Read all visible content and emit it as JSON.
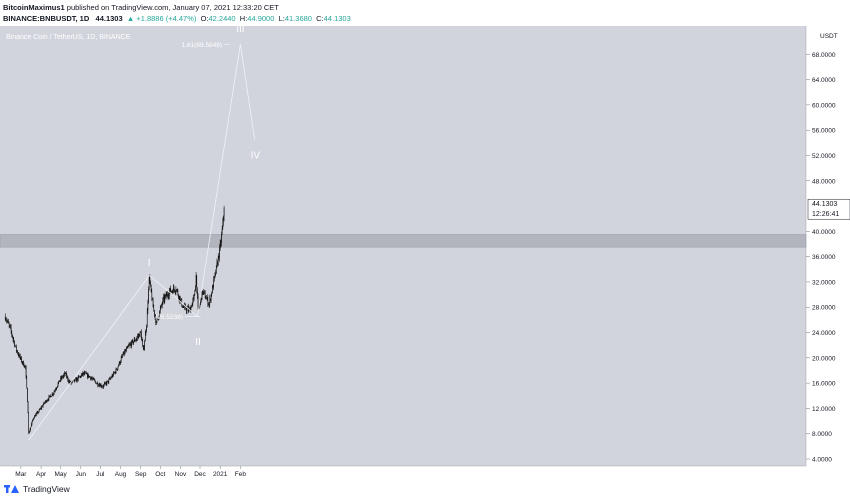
{
  "header": {
    "publisher": "BitcoinMaximus1",
    "published_text": "published on TradingView.com, January 07, 2021 12:33:20 CET",
    "symbol": "BINANCE:BNBUSDT, 1D",
    "last": "44.1303",
    "change": "▲ +1.8886 (+4.47%)",
    "ohlc": {
      "o_label": "O:",
      "o": "42.2440",
      "h_label": "H:",
      "h": "44.9000",
      "l_label": "L:",
      "l": "41.3680",
      "c_label": "C:",
      "c": "44.1303"
    }
  },
  "footer": {
    "brand": "TradingView"
  },
  "colors": {
    "plot_bg": "#d1d4dc",
    "axis_bg": "#ffffff",
    "candle": "#111111",
    "wave_line": "#f1f2f6",
    "support_band": "#b2b5be",
    "last_price_bg": "#ffffff"
  },
  "chart_data": {
    "type": "line",
    "title": "Binance Coin / TetherUS, 1D, BINANCE",
    "currency_label": "USDT",
    "x_ticks": [
      "Mar",
      "Apr",
      "May",
      "Jun",
      "Jul",
      "Aug",
      "Sep",
      "Oct",
      "Nov",
      "Dec",
      "2021",
      "Feb"
    ],
    "y_ticks": [
      "4.0000",
      "8.0000",
      "12.0000",
      "16.0000",
      "20.0000",
      "24.0000",
      "28.0000",
      "32.0000",
      "36.0000",
      "40.0000",
      "48.0000",
      "52.0000",
      "56.0000",
      "60.0000",
      "64.0000",
      "68.0000"
    ],
    "ylim": [
      4,
      72
    ],
    "last_price": "44.1303",
    "countdown": "12:26:41",
    "series": [
      {
        "values": [
          {
            "x": "2020-02-06",
            "y": 26.5
          },
          {
            "x": "2020-02-14",
            "y": 24.5
          },
          {
            "x": "2020-02-22",
            "y": 21.5
          },
          {
            "x": "2020-03-02",
            "y": 19.5
          },
          {
            "x": "2020-03-08",
            "y": 18.5
          },
          {
            "x": "2020-03-12",
            "y": 11.5
          },
          {
            "x": "2020-03-13",
            "y": 8.0
          },
          {
            "x": "2020-03-20",
            "y": 10.5
          },
          {
            "x": "2020-03-28",
            "y": 11.5
          },
          {
            "x": "2020-04-07",
            "y": 13.0
          },
          {
            "x": "2020-04-20",
            "y": 14.5
          },
          {
            "x": "2020-04-30",
            "y": 16.5
          },
          {
            "x": "2020-05-08",
            "y": 17.5
          },
          {
            "x": "2020-05-15",
            "y": 16.0
          },
          {
            "x": "2020-05-25",
            "y": 16.5
          },
          {
            "x": "2020-06-05",
            "y": 17.5
          },
          {
            "x": "2020-06-15",
            "y": 17.0
          },
          {
            "x": "2020-06-25",
            "y": 16.0
          },
          {
            "x": "2020-07-05",
            "y": 15.5
          },
          {
            "x": "2020-07-15",
            "y": 16.5
          },
          {
            "x": "2020-07-25",
            "y": 18.0
          },
          {
            "x": "2020-08-05",
            "y": 20.5
          },
          {
            "x": "2020-08-15",
            "y": 22.0
          },
          {
            "x": "2020-08-25",
            "y": 23.0
          },
          {
            "x": "2020-09-01",
            "y": 24.0
          },
          {
            "x": "2020-09-05",
            "y": 21.0
          },
          {
            "x": "2020-09-10",
            "y": 25.5
          },
          {
            "x": "2020-09-14",
            "y": 32.5
          },
          {
            "x": "2020-09-20",
            "y": 28.0
          },
          {
            "x": "2020-09-25",
            "y": 25.5
          },
          {
            "x": "2020-10-05",
            "y": 29.0
          },
          {
            "x": "2020-10-15",
            "y": 30.5
          },
          {
            "x": "2020-10-25",
            "y": 31.0
          },
          {
            "x": "2020-11-05",
            "y": 28.0
          },
          {
            "x": "2020-11-15",
            "y": 27.5
          },
          {
            "x": "2020-11-22",
            "y": 29.5
          },
          {
            "x": "2020-11-25",
            "y": 33.0
          },
          {
            "x": "2020-11-28",
            "y": 27.5
          },
          {
            "x": "2020-12-05",
            "y": 30.5
          },
          {
            "x": "2020-12-15",
            "y": 28.5
          },
          {
            "x": "2020-12-25",
            "y": 33.5
          },
          {
            "x": "2021-01-01",
            "y": 37.5
          },
          {
            "x": "2021-01-05",
            "y": 41.0
          },
          {
            "x": "2021-01-07",
            "y": 44.13
          }
        ]
      }
    ],
    "wave_labels": [
      {
        "label": "I",
        "x": "2020-09-14",
        "y": 34.5
      },
      {
        "label": "II",
        "x": "2020-11-28",
        "y": 22.0
      },
      {
        "label": "III",
        "x": "2021-02-01",
        "y": 71.5
      },
      {
        "label": "IV",
        "x": "2021-02-24",
        "y": 51.5
      }
    ],
    "wave_path": [
      {
        "x": "2020-03-13",
        "y": 7.0
      },
      {
        "x": "2020-09-14",
        "y": 33.0
      },
      {
        "x": "2020-10-14",
        "y": 30.5
      },
      {
        "x": "2020-11-27",
        "y": 26.5
      },
      {
        "x": "2021-02-01",
        "y": 69.58
      },
      {
        "x": "2021-02-23",
        "y": 54.5
      }
    ],
    "fib_levels": [
      {
        "label": "1.61(69.5848)",
        "y": 69.58,
        "x_start": "2021-01-07",
        "x_end": "2021-01-16"
      },
      {
        "label": "(26.5238)",
        "y": 26.52,
        "x_start": "2020-11-08",
        "x_end": "2020-12-02"
      }
    ],
    "support_zone": [
      37.5,
      39.5
    ]
  }
}
